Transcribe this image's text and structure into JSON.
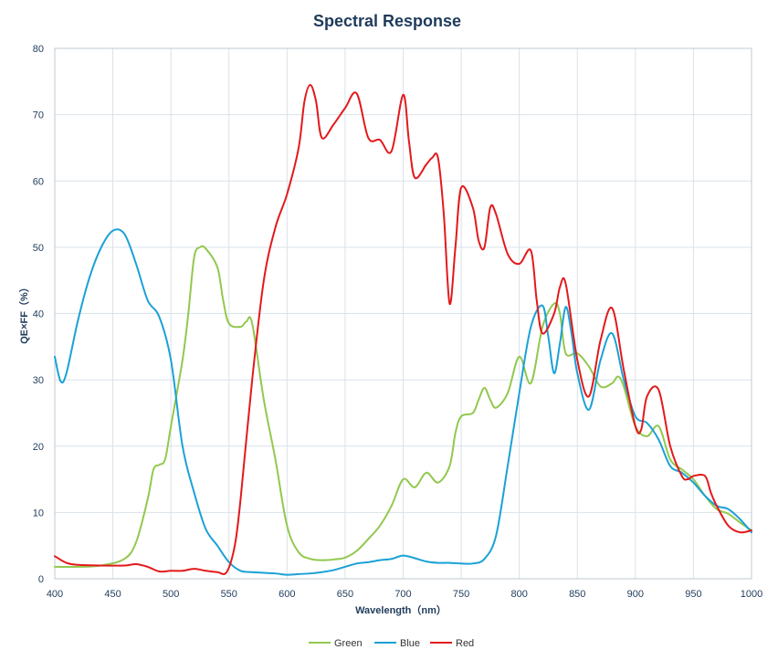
{
  "chart_data": {
    "type": "line",
    "title": "Spectral Response",
    "xlabel": "Wavelength（nm）",
    "ylabel": "QE×FF（%）",
    "xlim": [
      400,
      1000
    ],
    "ylim": [
      0,
      80
    ],
    "xticks": [
      400,
      450,
      500,
      550,
      600,
      650,
      700,
      750,
      800,
      850,
      900,
      950,
      1000
    ],
    "yticks": [
      0,
      10,
      20,
      30,
      40,
      50,
      60,
      70,
      80
    ],
    "grid": true,
    "legend_position": "bottom",
    "series": [
      {
        "name": "Green",
        "color": "#92c84f",
        "points": [
          [
            400,
            1.8
          ],
          [
            420,
            1.8
          ],
          [
            440,
            2.0
          ],
          [
            460,
            3.0
          ],
          [
            470,
            5.5
          ],
          [
            480,
            12
          ],
          [
            485,
            16.5
          ],
          [
            490,
            17.2
          ],
          [
            495,
            18
          ],
          [
            500,
            23
          ],
          [
            510,
            33
          ],
          [
            515,
            40
          ],
          [
            520,
            48.5
          ],
          [
            525,
            50
          ],
          [
            530,
            49.8
          ],
          [
            540,
            47
          ],
          [
            545,
            42
          ],
          [
            550,
            38.5
          ],
          [
            560,
            38
          ],
          [
            565,
            38.8
          ],
          [
            570,
            38.5
          ],
          [
            580,
            27
          ],
          [
            590,
            18
          ],
          [
            600,
            8
          ],
          [
            610,
            4
          ],
          [
            620,
            3
          ],
          [
            630,
            2.8
          ],
          [
            640,
            2.9
          ],
          [
            650,
            3.2
          ],
          [
            660,
            4.2
          ],
          [
            670,
            6
          ],
          [
            680,
            8
          ],
          [
            690,
            11
          ],
          [
            700,
            15
          ],
          [
            710,
            13.8
          ],
          [
            720,
            16
          ],
          [
            730,
            14.5
          ],
          [
            740,
            17
          ],
          [
            745,
            22
          ],
          [
            750,
            24.5
          ],
          [
            760,
            25
          ],
          [
            765,
            27
          ],
          [
            770,
            28.8
          ],
          [
            775,
            27
          ],
          [
            780,
            25.8
          ],
          [
            790,
            28
          ],
          [
            800,
            33.5
          ],
          [
            810,
            29.5
          ],
          [
            820,
            38
          ],
          [
            830,
            41.5
          ],
          [
            835,
            40
          ],
          [
            840,
            34
          ],
          [
            850,
            34
          ],
          [
            860,
            32
          ],
          [
            870,
            29
          ],
          [
            880,
            29.5
          ],
          [
            885,
            30.5
          ],
          [
            890,
            29
          ],
          [
            900,
            23
          ],
          [
            910,
            21.5
          ],
          [
            920,
            23
          ],
          [
            930,
            18
          ],
          [
            940,
            16.5
          ],
          [
            950,
            15
          ],
          [
            960,
            12.5
          ],
          [
            970,
            10.5
          ],
          [
            980,
            9.8
          ],
          [
            990,
            8.5
          ],
          [
            1000,
            7.3
          ]
        ]
      },
      {
        "name": "Blue",
        "color": "#1ba1d6",
        "points": [
          [
            400,
            33.5
          ],
          [
            405,
            29.8
          ],
          [
            410,
            31
          ],
          [
            420,
            39
          ],
          [
            430,
            45.5
          ],
          [
            440,
            50
          ],
          [
            450,
            52.5
          ],
          [
            460,
            52
          ],
          [
            470,
            47.5
          ],
          [
            480,
            42
          ],
          [
            490,
            39.5
          ],
          [
            500,
            33
          ],
          [
            510,
            20
          ],
          [
            520,
            13
          ],
          [
            530,
            7.5
          ],
          [
            540,
            5
          ],
          [
            550,
            2.5
          ],
          [
            560,
            1.2
          ],
          [
            570,
            1.0
          ],
          [
            580,
            0.9
          ],
          [
            590,
            0.8
          ],
          [
            600,
            0.6
          ],
          [
            610,
            0.7
          ],
          [
            620,
            0.8
          ],
          [
            630,
            1.0
          ],
          [
            640,
            1.3
          ],
          [
            650,
            1.8
          ],
          [
            660,
            2.3
          ],
          [
            670,
            2.5
          ],
          [
            680,
            2.8
          ],
          [
            690,
            3.0
          ],
          [
            700,
            3.5
          ],
          [
            710,
            3.1
          ],
          [
            720,
            2.6
          ],
          [
            730,
            2.4
          ],
          [
            740,
            2.4
          ],
          [
            750,
            2.3
          ],
          [
            760,
            2.3
          ],
          [
            770,
            3.0
          ],
          [
            780,
            6.5
          ],
          [
            790,
            17
          ],
          [
            800,
            28
          ],
          [
            810,
            38
          ],
          [
            820,
            41.2
          ],
          [
            825,
            36.5
          ],
          [
            830,
            31
          ],
          [
            835,
            35.5
          ],
          [
            840,
            41
          ],
          [
            845,
            37
          ],
          [
            850,
            31
          ],
          [
            860,
            25.5
          ],
          [
            870,
            33
          ],
          [
            880,
            37
          ],
          [
            890,
            30
          ],
          [
            900,
            24.5
          ],
          [
            910,
            23.5
          ],
          [
            920,
            21
          ],
          [
            930,
            17
          ],
          [
            940,
            16
          ],
          [
            950,
            14.5
          ],
          [
            960,
            12.5
          ],
          [
            970,
            11
          ],
          [
            980,
            10.5
          ],
          [
            990,
            9
          ],
          [
            1000,
            7.0
          ]
        ]
      },
      {
        "name": "Red",
        "color": "#e3191b",
        "points": [
          [
            400,
            3.4
          ],
          [
            410,
            2.4
          ],
          [
            420,
            2.1
          ],
          [
            440,
            2.0
          ],
          [
            460,
            2.0
          ],
          [
            470,
            2.2
          ],
          [
            480,
            1.8
          ],
          [
            490,
            1.1
          ],
          [
            500,
            1.2
          ],
          [
            510,
            1.2
          ],
          [
            520,
            1.5
          ],
          [
            530,
            1.2
          ],
          [
            540,
            1.0
          ],
          [
            548,
            1.0
          ],
          [
            555,
            5
          ],
          [
            560,
            12
          ],
          [
            570,
            30
          ],
          [
            580,
            45
          ],
          [
            590,
            53
          ],
          [
            600,
            58
          ],
          [
            610,
            65
          ],
          [
            615,
            72
          ],
          [
            620,
            74.5
          ],
          [
            625,
            72
          ],
          [
            630,
            66.5
          ],
          [
            640,
            68.5
          ],
          [
            650,
            71
          ],
          [
            660,
            73.2
          ],
          [
            670,
            66.5
          ],
          [
            680,
            66.2
          ],
          [
            690,
            64.5
          ],
          [
            700,
            73
          ],
          [
            705,
            66
          ],
          [
            710,
            60.5
          ],
          [
            720,
            62.5
          ],
          [
            725,
            63.5
          ],
          [
            730,
            63.5
          ],
          [
            735,
            55
          ],
          [
            740,
            41.5
          ],
          [
            745,
            50
          ],
          [
            750,
            59
          ],
          [
            760,
            56
          ],
          [
            765,
            51
          ],
          [
            770,
            50
          ],
          [
            775,
            56
          ],
          [
            780,
            55
          ],
          [
            790,
            49
          ],
          [
            800,
            47.5
          ],
          [
            810,
            49.5
          ],
          [
            815,
            42
          ],
          [
            820,
            37
          ],
          [
            830,
            40
          ],
          [
            835,
            44
          ],
          [
            840,
            44.5
          ],
          [
            850,
            33
          ],
          [
            860,
            27.5
          ],
          [
            870,
            36
          ],
          [
            880,
            40.8
          ],
          [
            890,
            31.5
          ],
          [
            900,
            23
          ],
          [
            905,
            22.5
          ],
          [
            910,
            27.5
          ],
          [
            920,
            28.5
          ],
          [
            930,
            20
          ],
          [
            940,
            15.5
          ],
          [
            945,
            15
          ],
          [
            950,
            15.5
          ],
          [
            960,
            15.5
          ],
          [
            965,
            13
          ],
          [
            970,
            11
          ],
          [
            980,
            8
          ],
          [
            990,
            7.0
          ],
          [
            1000,
            7.3
          ]
        ]
      }
    ]
  }
}
